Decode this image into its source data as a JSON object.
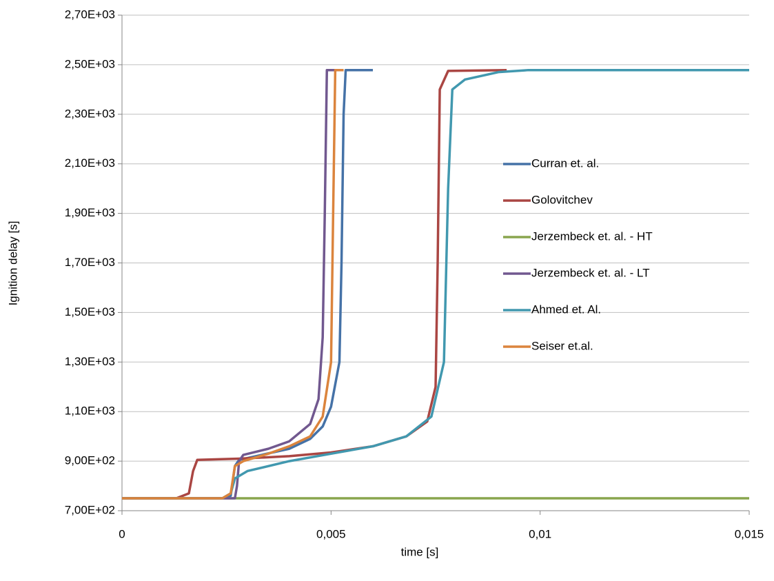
{
  "chart_data": {
    "type": "line",
    "xlabel": "time [s]",
    "ylabel": "Ignition delay [s]",
    "xlim": [
      0,
      0.015
    ],
    "xticks": [
      0,
      {
        "value": 0.005,
        "label": "0,005"
      },
      {
        "value": 0.01,
        "label": "0,01"
      },
      {
        "value": 0.015,
        "label": "0,015"
      }
    ],
    "ylim": [
      700,
      2700
    ],
    "yticks": [
      {
        "value": 700,
        "label": "7,00E+02"
      },
      {
        "value": 900,
        "label": "9,00E+02"
      },
      {
        "value": 1100,
        "label": "1,10E+03"
      },
      {
        "value": 1300,
        "label": "1,30E+03"
      },
      {
        "value": 1500,
        "label": "1,50E+03"
      },
      {
        "value": 1700,
        "label": "1,70E+03"
      },
      {
        "value": 1900,
        "label": "1,90E+03"
      },
      {
        "value": 2100,
        "label": "2,10E+03"
      },
      {
        "value": 2300,
        "label": "2,30E+03"
      },
      {
        "value": 2500,
        "label": "2,50E+03"
      },
      {
        "value": 2700,
        "label": "2,70E+03"
      }
    ],
    "grid": true,
    "legend": "right",
    "series": [
      {
        "name": "Curran et. al.",
        "color": "#4572a7",
        "x": [
          0,
          0.0024,
          0.0026,
          0.0027,
          0.0028,
          0.0032,
          0.004,
          0.0045,
          0.0048,
          0.005,
          0.0052,
          0.00525,
          0.0053,
          0.00535,
          0.006
        ],
        "values": [
          750,
          750,
          760,
          880,
          905,
          920,
          950,
          990,
          1040,
          1120,
          1300,
          1700,
          2300,
          2478,
          2478
        ]
      },
      {
        "name": "Golovitchev",
        "color": "#aa4643",
        "x": [
          0,
          0.0013,
          0.0016,
          0.0017,
          0.0018,
          0.0028,
          0.004,
          0.005,
          0.006,
          0.0068,
          0.0073,
          0.0075,
          0.00755,
          0.0076,
          0.0078,
          0.0092
        ],
        "values": [
          750,
          750,
          770,
          860,
          905,
          910,
          920,
          935,
          960,
          1000,
          1060,
          1200,
          1700,
          2400,
          2475,
          2478
        ]
      },
      {
        "name": "Jerzembeck et. al. - HT",
        "color": "#89a54e",
        "x": [
          0,
          0.015
        ],
        "values": [
          750,
          750
        ]
      },
      {
        "name": "Jerzembeck et. al. - LT",
        "color": "#71588f",
        "x": [
          0,
          0.0027,
          0.00275,
          0.0028,
          0.0029,
          0.0035,
          0.004,
          0.0045,
          0.0047,
          0.0048,
          0.00485,
          0.0049,
          0.0051
        ],
        "values": [
          750,
          750,
          800,
          900,
          925,
          950,
          980,
          1050,
          1150,
          1400,
          1900,
          2478,
          2478
        ]
      },
      {
        "name": "Ahmed et. Al.",
        "color": "#4198af",
        "x": [
          0,
          0.0024,
          0.0026,
          0.0027,
          0.003,
          0.004,
          0.005,
          0.006,
          0.0068,
          0.0074,
          0.0077,
          0.0078,
          0.0079,
          0.0082,
          0.009,
          0.0097,
          0.015
        ],
        "values": [
          750,
          750,
          770,
          830,
          860,
          900,
          930,
          960,
          1000,
          1080,
          1300,
          2000,
          2400,
          2440,
          2470,
          2478,
          2478
        ]
      },
      {
        "name": "Seiser et.al.",
        "color": "#db843d",
        "x": [
          0,
          0.0024,
          0.0026,
          0.0027,
          0.0029,
          0.0035,
          0.004,
          0.0045,
          0.0048,
          0.005,
          0.00505,
          0.0051,
          0.0053
        ],
        "values": [
          750,
          750,
          770,
          880,
          900,
          930,
          960,
          1000,
          1080,
          1300,
          1900,
          2478,
          2478
        ]
      }
    ]
  }
}
